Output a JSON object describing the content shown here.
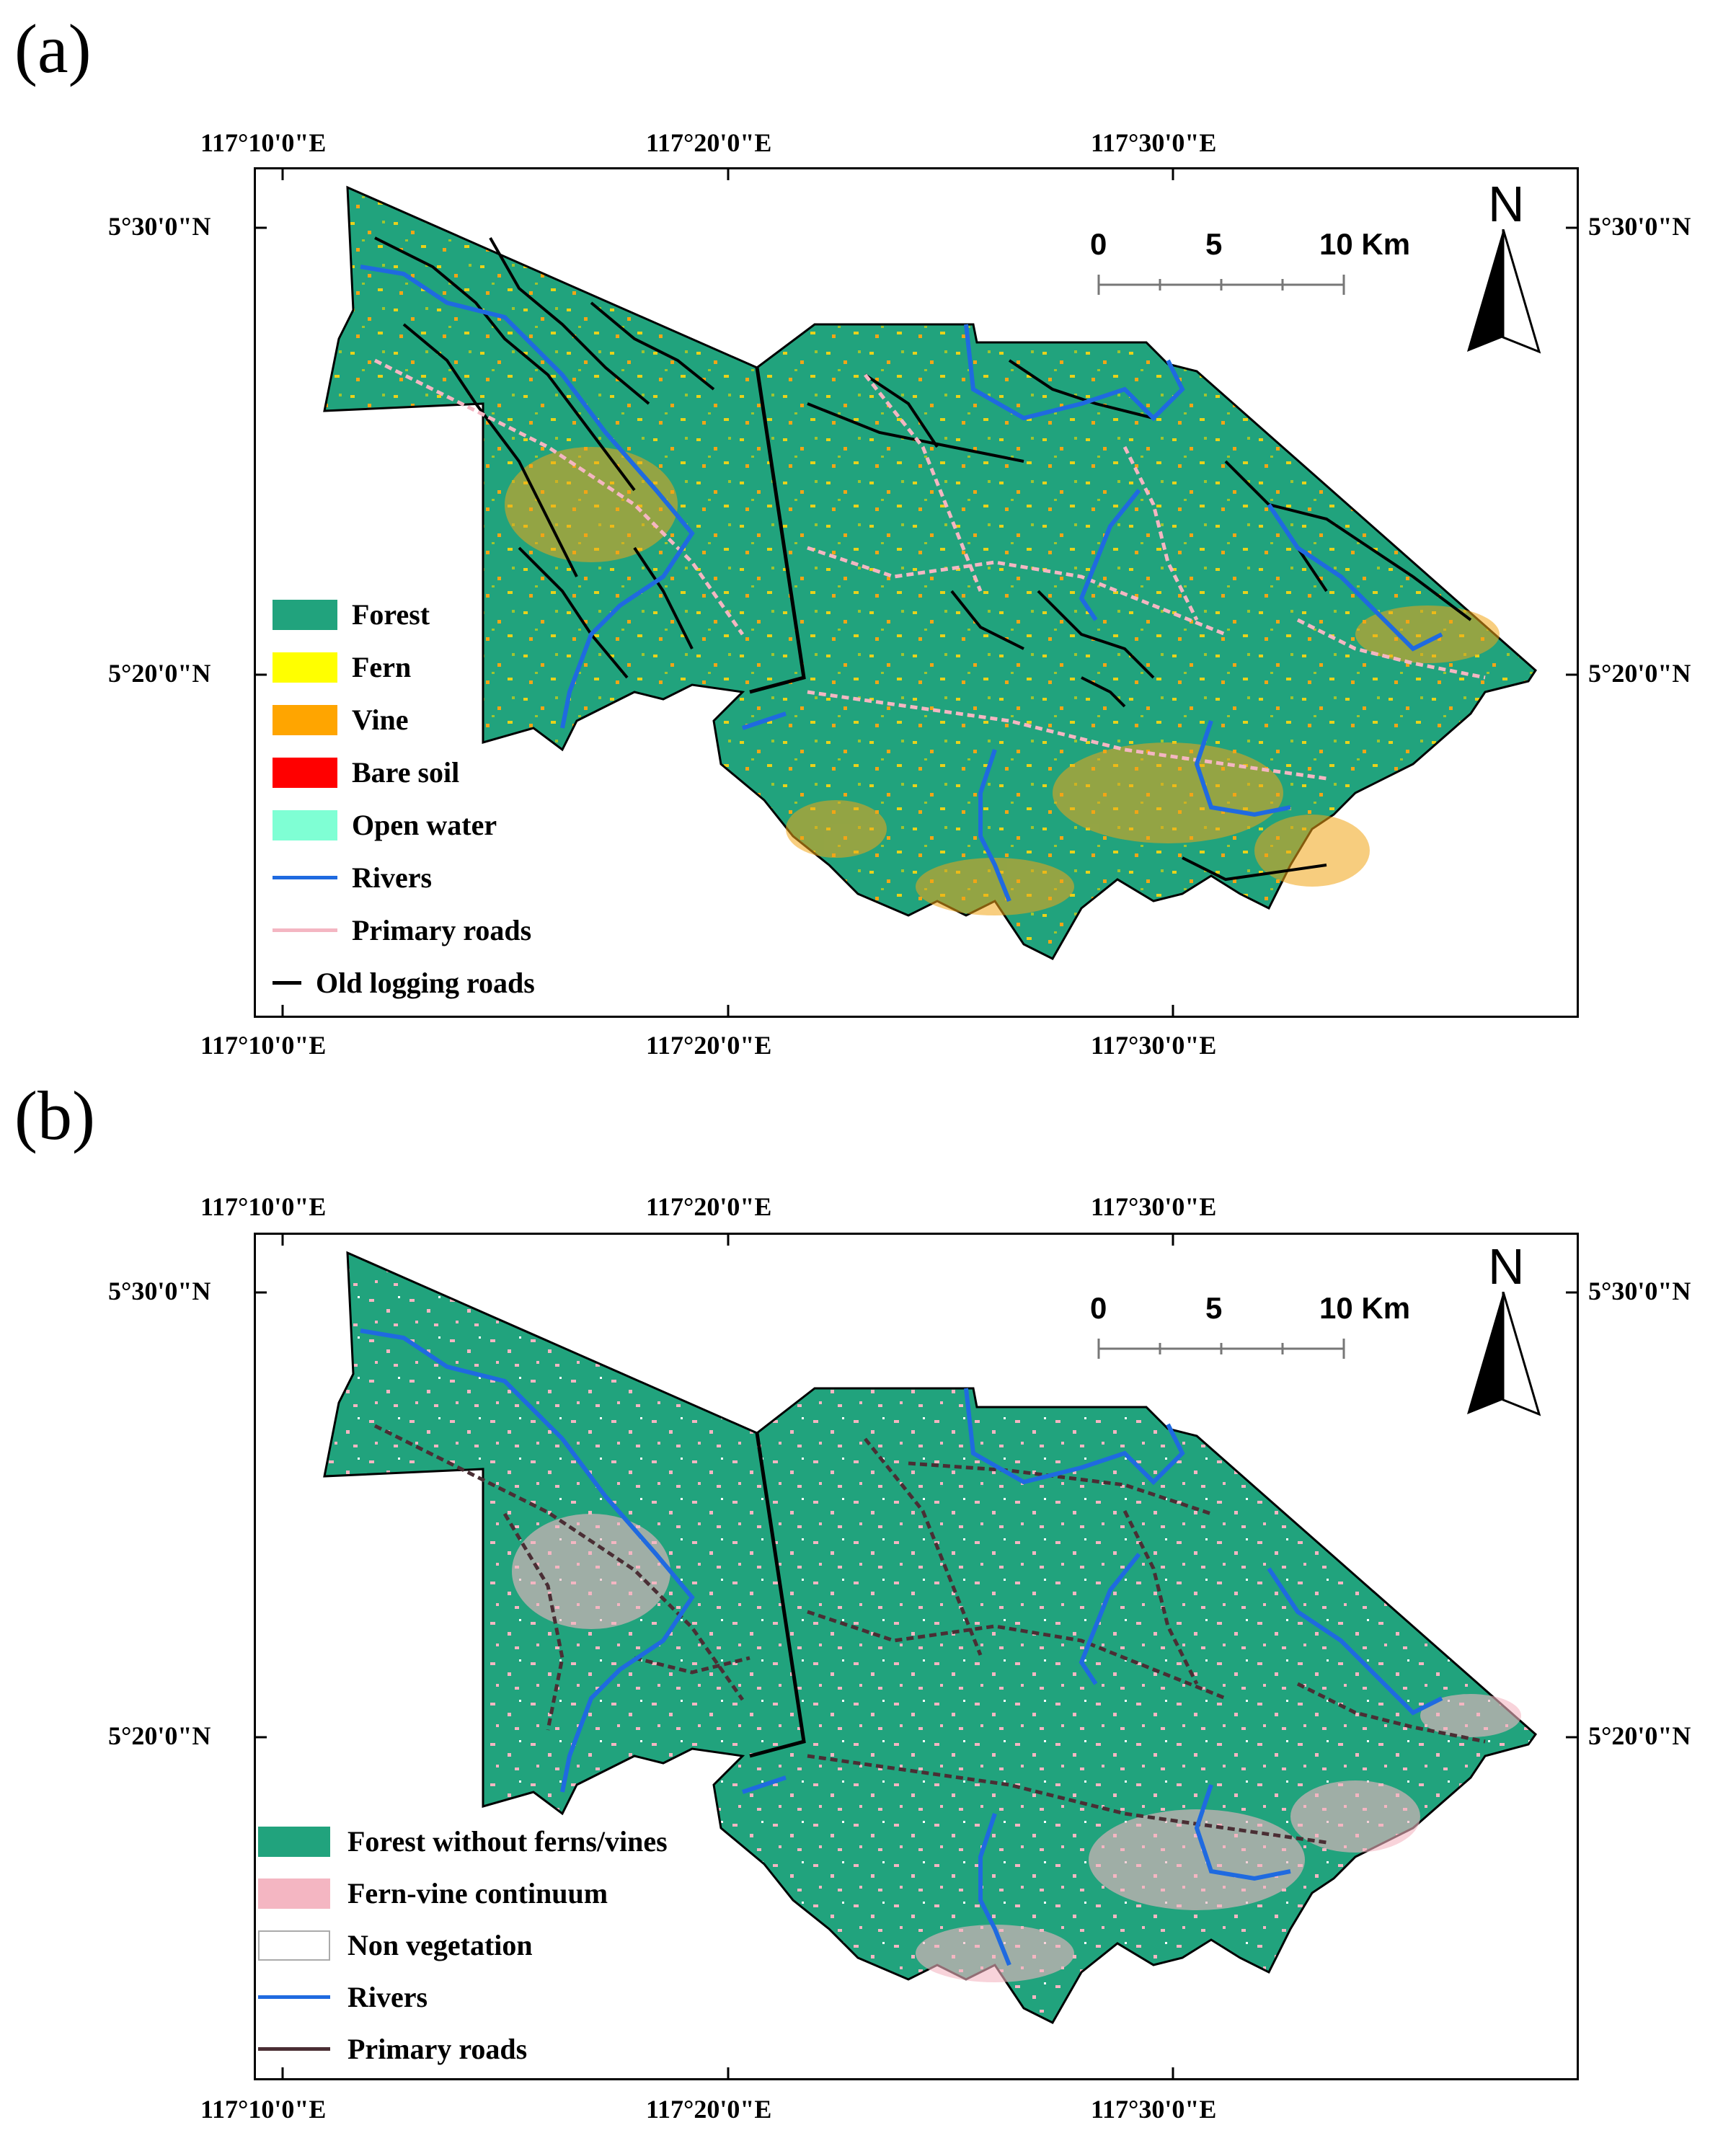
{
  "panels": [
    {
      "label": "(a)",
      "top_coords": [
        "117°10'0\"E",
        "117°20'0\"E",
        "117°30'0\"E"
      ],
      "bottom_coords": [
        "117°10'0\"E",
        "117°20'0\"E",
        "117°30'0\"E"
      ],
      "left_coords": [
        "5°30'0\"N",
        "5°20'0\"N"
      ],
      "right_coords": [
        "5°30'0\"N",
        "5°20'0\"N"
      ],
      "scale": {
        "labels": [
          "0",
          "5",
          "10 Km"
        ]
      },
      "north": "N",
      "legend": [
        {
          "label": "Forest",
          "kind": "fill",
          "color": "#21A37D"
        },
        {
          "label": "Fern",
          "kind": "fill",
          "color": "#FFFF00"
        },
        {
          "label": "Vine",
          "kind": "fill",
          "color": "#FFA500"
        },
        {
          "label": "Bare soil",
          "kind": "fill",
          "color": "#FF0000"
        },
        {
          "label": "Open water",
          "kind": "fill",
          "color": "#7FFFD4"
        },
        {
          "label": "Rivers",
          "kind": "line",
          "color": "#1F6AE0"
        },
        {
          "label": "Primary roads",
          "kind": "line",
          "color": "#F4B6C2"
        },
        {
          "label": "Old logging roads",
          "kind": "line",
          "color": "#000000"
        }
      ]
    },
    {
      "label": "(b)",
      "top_coords": [
        "117°10'0\"E",
        "117°20'0\"E",
        "117°30'0\"E"
      ],
      "bottom_coords": [
        "117°10'0\"E",
        "117°20'0\"E",
        "117°30'0\"E"
      ],
      "left_coords": [
        "5°30'0\"N",
        "5°20'0\"N"
      ],
      "right_coords": [
        "5°30'0\"N",
        "5°20'0\"N"
      ],
      "scale": {
        "labels": [
          "0",
          "5",
          "10 Km"
        ]
      },
      "north": "N",
      "legend": [
        {
          "label": "Forest without ferns/vines",
          "kind": "fill",
          "color": "#21A37D"
        },
        {
          "label": "Fern-vine continuum",
          "kind": "fill",
          "color": "#F4B6C2"
        },
        {
          "label": "Non vegetation",
          "kind": "fill",
          "color": "#FFFFFF"
        },
        {
          "label": "Rivers",
          "kind": "line",
          "color": "#1F6AE0"
        },
        {
          "label": "Primary roads",
          "kind": "line",
          "color": "#4A2E34"
        }
      ]
    }
  ]
}
